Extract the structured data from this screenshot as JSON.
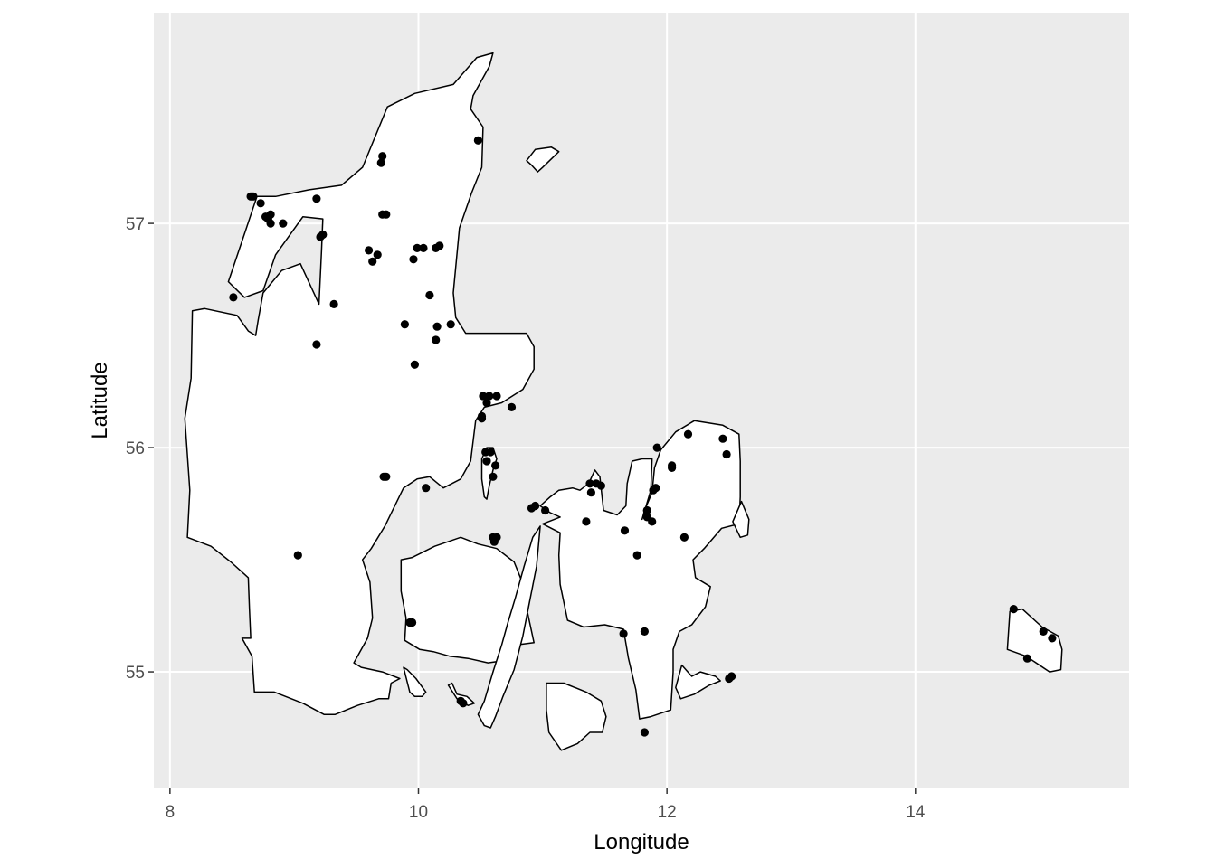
{
  "chart_data": {
    "type": "scatter",
    "title": "",
    "xlabel": "Longitude",
    "ylabel": "Latitude",
    "xlim": [
      7.87,
      15.72
    ],
    "ylim": [
      54.48,
      57.94
    ],
    "x_ticks": [
      8,
      10,
      12,
      14
    ],
    "x_tick_labels": [
      "8",
      "10",
      "12",
      "14"
    ],
    "y_ticks": [
      55,
      56,
      57
    ],
    "y_tick_labels": [
      "55",
      "56",
      "57"
    ],
    "panel_background": "#ebebeb",
    "grid": true,
    "land_fill": "#ffffff",
    "land_outline": "#000000",
    "point_color": "#000000",
    "land_polygons": [
      [
        [
          8.54,
          56.59
        ],
        [
          8.63,
          56.52
        ],
        [
          8.69,
          56.5
        ],
        [
          8.71,
          56.57
        ],
        [
          8.75,
          56.69
        ],
        [
          8.9,
          56.79
        ],
        [
          9.05,
          56.82
        ],
        [
          9.2,
          56.64
        ],
        [
          9.22,
          56.88
        ],
        [
          9.23,
          57.02
        ],
        [
          9.07,
          57.03
        ],
        [
          8.85,
          56.86
        ],
        [
          8.75,
          56.7
        ],
        [
          8.6,
          56.67
        ],
        [
          8.47,
          56.74
        ],
        [
          8.61,
          56.97
        ],
        [
          8.7,
          57.12
        ],
        [
          8.85,
          57.12
        ],
        [
          9.12,
          57.15
        ],
        [
          9.38,
          57.17
        ],
        [
          9.55,
          57.25
        ],
        [
          9.75,
          57.52
        ],
        [
          9.97,
          57.58
        ],
        [
          10.28,
          57.62
        ],
        [
          10.47,
          57.74
        ],
        [
          10.6,
          57.76
        ],
        [
          10.57,
          57.7
        ],
        [
          10.44,
          57.57
        ],
        [
          10.42,
          57.51
        ],
        [
          10.52,
          57.43
        ],
        [
          10.51,
          57.25
        ],
        [
          10.43,
          57.14
        ],
        [
          10.33,
          56.98
        ],
        [
          10.28,
          56.69
        ],
        [
          10.3,
          56.58
        ],
        [
          10.38,
          56.51
        ],
        [
          10.87,
          56.51
        ],
        [
          10.93,
          56.45
        ],
        [
          10.93,
          56.35
        ],
        [
          10.84,
          56.26
        ],
        [
          10.67,
          56.2
        ],
        [
          10.53,
          56.18
        ],
        [
          10.46,
          56.12
        ],
        [
          10.42,
          55.94
        ],
        [
          10.34,
          55.86
        ],
        [
          10.2,
          55.82
        ],
        [
          10.09,
          55.87
        ],
        [
          9.99,
          55.86
        ],
        [
          9.88,
          55.82
        ],
        [
          9.73,
          55.65
        ],
        [
          9.62,
          55.55
        ],
        [
          9.55,
          55.5
        ],
        [
          9.61,
          55.4
        ],
        [
          9.63,
          55.24
        ],
        [
          9.59,
          55.15
        ],
        [
          9.48,
          55.04
        ],
        [
          9.54,
          55.02
        ],
        [
          9.71,
          55.0
        ],
        [
          9.85,
          54.97
        ],
        [
          9.78,
          54.95
        ],
        [
          9.76,
          54.88
        ],
        [
          9.68,
          54.88
        ],
        [
          9.51,
          54.85
        ],
        [
          9.33,
          54.81
        ],
        [
          9.24,
          54.81
        ],
        [
          9.07,
          54.86
        ],
        [
          8.84,
          54.91
        ],
        [
          8.68,
          54.91
        ],
        [
          8.66,
          55.07
        ],
        [
          8.58,
          55.15
        ],
        [
          8.65,
          55.15
        ],
        [
          8.64,
          55.28
        ],
        [
          8.63,
          55.42
        ],
        [
          8.49,
          55.49
        ],
        [
          8.33,
          55.56
        ],
        [
          8.14,
          55.6
        ],
        [
          8.16,
          55.81
        ],
        [
          8.12,
          56.13
        ],
        [
          8.17,
          56.31
        ],
        [
          8.18,
          56.61
        ],
        [
          8.28,
          56.62
        ]
      ],
      [
        [
          10.93,
          55.13
        ],
        [
          10.88,
          55.26
        ],
        [
          10.81,
          55.32
        ],
        [
          10.85,
          55.38
        ],
        [
          10.77,
          55.49
        ],
        [
          10.63,
          55.55
        ],
        [
          10.48,
          55.57
        ],
        [
          10.34,
          55.6
        ],
        [
          10.13,
          55.56
        ],
        [
          9.95,
          55.51
        ],
        [
          9.86,
          55.5
        ],
        [
          9.86,
          55.36
        ],
        [
          9.9,
          55.24
        ],
        [
          9.89,
          55.14
        ],
        [
          10.01,
          55.1
        ],
        [
          10.12,
          55.09
        ],
        [
          10.25,
          55.07
        ],
        [
          10.4,
          55.06
        ],
        [
          10.56,
          55.04
        ],
        [
          10.68,
          55.05
        ],
        [
          10.79,
          55.12
        ]
      ],
      [
        [
          11.13,
          55.81
        ],
        [
          11.06,
          55.78
        ],
        [
          10.98,
          55.74
        ],
        [
          11.06,
          55.71
        ],
        [
          11.14,
          55.69
        ],
        [
          11.0,
          55.66
        ],
        [
          11.14,
          55.62
        ],
        [
          11.13,
          55.52
        ],
        [
          11.14,
          55.39
        ],
        [
          11.2,
          55.23
        ],
        [
          11.33,
          55.2
        ],
        [
          11.5,
          55.21
        ],
        [
          11.65,
          55.19
        ],
        [
          11.69,
          55.06
        ],
        [
          11.75,
          54.92
        ],
        [
          11.78,
          54.79
        ],
        [
          11.87,
          54.8
        ],
        [
          12.03,
          54.83
        ],
        [
          12.05,
          55.0
        ],
        [
          12.05,
          55.1
        ],
        [
          12.1,
          55.18
        ],
        [
          12.2,
          55.21
        ],
        [
          12.31,
          55.29
        ],
        [
          12.35,
          55.38
        ],
        [
          12.23,
          55.42
        ],
        [
          12.21,
          55.5
        ],
        [
          12.3,
          55.55
        ],
        [
          12.44,
          55.64
        ],
        [
          12.58,
          55.66
        ],
        [
          12.59,
          55.78
        ],
        [
          12.59,
          55.94
        ],
        [
          12.58,
          56.06
        ],
        [
          12.45,
          56.1
        ],
        [
          12.22,
          56.12
        ],
        [
          12.07,
          56.07
        ],
        [
          11.95,
          55.99
        ],
        [
          11.9,
          55.91
        ],
        [
          11.88,
          55.8
        ],
        [
          11.82,
          55.72
        ],
        [
          11.8,
          55.68
        ],
        [
          11.87,
          55.81
        ],
        [
          11.88,
          55.95
        ],
        [
          11.8,
          55.95
        ],
        [
          11.72,
          55.94
        ],
        [
          11.68,
          55.84
        ],
        [
          11.67,
          55.74
        ],
        [
          11.6,
          55.7
        ],
        [
          11.49,
          55.72
        ],
        [
          11.46,
          55.87
        ],
        [
          11.42,
          55.9
        ],
        [
          11.37,
          55.84
        ],
        [
          11.3,
          55.81
        ],
        [
          11.24,
          55.82
        ]
      ],
      [
        [
          10.98,
          55.65
        ],
        [
          10.95,
          55.47
        ],
        [
          10.89,
          55.3
        ],
        [
          10.84,
          55.16
        ],
        [
          10.77,
          55.01
        ],
        [
          10.68,
          54.89
        ],
        [
          10.62,
          54.8
        ],
        [
          10.58,
          54.75
        ],
        [
          10.53,
          54.76
        ],
        [
          10.48,
          54.81
        ],
        [
          10.53,
          54.87
        ],
        [
          10.6,
          55.0
        ],
        [
          10.67,
          55.12
        ],
        [
          10.72,
          55.22
        ],
        [
          10.78,
          55.33
        ],
        [
          10.85,
          55.47
        ],
        [
          10.92,
          55.6
        ]
      ],
      [
        [
          10.51,
          55.95
        ],
        [
          10.55,
          56.0
        ],
        [
          10.6,
          56.0
        ],
        [
          10.63,
          55.95
        ],
        [
          10.6,
          55.9
        ],
        [
          10.57,
          55.83
        ],
        [
          10.55,
          55.77
        ],
        [
          10.53,
          55.78
        ],
        [
          10.51,
          55.86
        ]
      ],
      [
        [
          9.91,
          55.01
        ],
        [
          9.98,
          54.97
        ],
        [
          10.06,
          54.91
        ],
        [
          10.03,
          54.89
        ],
        [
          9.97,
          54.89
        ],
        [
          9.93,
          54.91
        ],
        [
          9.88,
          55.02
        ]
      ],
      [
        [
          10.24,
          54.94
        ],
        [
          10.31,
          54.88
        ],
        [
          10.4,
          54.85
        ],
        [
          10.45,
          54.86
        ],
        [
          10.39,
          54.89
        ],
        [
          10.31,
          54.9
        ],
        [
          10.27,
          54.95
        ]
      ],
      [
        [
          11.03,
          54.95
        ],
        [
          11.17,
          54.95
        ],
        [
          11.35,
          54.91
        ],
        [
          11.47,
          54.87
        ],
        [
          11.51,
          54.8
        ],
        [
          11.48,
          54.73
        ],
        [
          11.38,
          54.73
        ],
        [
          11.28,
          54.68
        ],
        [
          11.15,
          54.65
        ],
        [
          11.05,
          54.73
        ],
        [
          11.03,
          54.83
        ]
      ],
      [
        [
          12.12,
          55.03
        ],
        [
          12.2,
          54.98
        ],
        [
          12.27,
          55.0
        ],
        [
          12.39,
          54.98
        ],
        [
          12.43,
          54.96
        ],
        [
          12.34,
          54.94
        ],
        [
          12.22,
          54.9
        ],
        [
          12.11,
          54.88
        ],
        [
          12.07,
          54.93
        ]
      ],
      [
        [
          12.53,
          55.67
        ],
        [
          12.59,
          55.6
        ],
        [
          12.65,
          55.61
        ],
        [
          12.66,
          55.68
        ],
        [
          12.6,
          55.76
        ]
      ],
      [
        [
          10.87,
          57.28
        ],
        [
          10.94,
          57.33
        ],
        [
          11.07,
          57.34
        ],
        [
          11.13,
          57.32
        ],
        [
          11.0,
          57.25
        ],
        [
          10.96,
          57.23
        ],
        [
          10.91,
          57.26
        ]
      ],
      [
        [
          14.86,
          55.28
        ],
        [
          15.02,
          55.2
        ],
        [
          15.15,
          55.16
        ],
        [
          15.18,
          55.1
        ],
        [
          15.17,
          55.01
        ],
        [
          15.08,
          55.0
        ],
        [
          14.89,
          55.07
        ],
        [
          14.74,
          55.1
        ],
        [
          14.76,
          55.27
        ]
      ]
    ],
    "points": [
      [
        10.48,
        57.37
      ],
      [
        9.71,
        57.3
      ],
      [
        9.7,
        57.27
      ],
      [
        8.65,
        57.12
      ],
      [
        8.67,
        57.12
      ],
      [
        8.73,
        57.09
      ],
      [
        9.18,
        57.11
      ],
      [
        8.81,
        57.04
      ],
      [
        8.77,
        57.03
      ],
      [
        8.79,
        57.02
      ],
      [
        8.81,
        57.0
      ],
      [
        8.91,
        57.0
      ],
      [
        9.71,
        57.04
      ],
      [
        9.74,
        57.04
      ],
      [
        9.23,
        56.95
      ],
      [
        9.21,
        56.94
      ],
      [
        9.99,
        56.89
      ],
      [
        10.04,
        56.89
      ],
      [
        10.14,
        56.89
      ],
      [
        10.17,
        56.9
      ],
      [
        9.6,
        56.88
      ],
      [
        9.67,
        56.86
      ],
      [
        9.63,
        56.83
      ],
      [
        9.96,
        56.84
      ],
      [
        8.51,
        56.67
      ],
      [
        10.09,
        56.68
      ],
      [
        9.32,
        56.64
      ],
      [
        9.89,
        56.55
      ],
      [
        10.15,
        56.54
      ],
      [
        10.26,
        56.55
      ],
      [
        10.14,
        56.48
      ],
      [
        9.18,
        56.46
      ],
      [
        9.97,
        56.37
      ],
      [
        10.52,
        56.23
      ],
      [
        10.57,
        56.23
      ],
      [
        10.63,
        56.23
      ],
      [
        10.55,
        56.2
      ],
      [
        10.75,
        56.18
      ],
      [
        10.51,
        56.14
      ],
      [
        10.51,
        56.13
      ],
      [
        10.54,
        55.98
      ],
      [
        10.58,
        55.98
      ],
      [
        10.55,
        55.94
      ],
      [
        10.62,
        55.92
      ],
      [
        10.6,
        55.87
      ],
      [
        9.72,
        55.87
      ],
      [
        9.74,
        55.87
      ],
      [
        10.06,
        55.82
      ],
      [
        9.03,
        55.52
      ],
      [
        10.91,
        55.73
      ],
      [
        10.94,
        55.74
      ],
      [
        11.02,
        55.72
      ],
      [
        11.38,
        55.84
      ],
      [
        11.43,
        55.84
      ],
      [
        11.47,
        55.83
      ],
      [
        11.39,
        55.8
      ],
      [
        11.35,
        55.67
      ],
      [
        11.66,
        55.63
      ],
      [
        11.84,
        55.72
      ],
      [
        11.84,
        55.69
      ],
      [
        11.88,
        55.67
      ],
      [
        11.76,
        55.52
      ],
      [
        11.89,
        55.81
      ],
      [
        11.91,
        55.82
      ],
      [
        11.92,
        56.0
      ],
      [
        12.17,
        56.06
      ],
      [
        12.04,
        55.91
      ],
      [
        12.04,
        55.92
      ],
      [
        12.45,
        56.04
      ],
      [
        12.48,
        55.97
      ],
      [
        12.14,
        55.6
      ],
      [
        10.6,
        55.6
      ],
      [
        10.61,
        55.58
      ],
      [
        10.63,
        55.6
      ],
      [
        9.93,
        55.22
      ],
      [
        9.95,
        55.22
      ],
      [
        11.65,
        55.17
      ],
      [
        11.82,
        55.18
      ],
      [
        10.34,
        54.87
      ],
      [
        10.36,
        54.86
      ],
      [
        11.82,
        54.73
      ],
      [
        12.5,
        54.97
      ],
      [
        12.52,
        54.98
      ],
      [
        14.79,
        55.28
      ],
      [
        15.03,
        55.18
      ],
      [
        15.1,
        55.15
      ],
      [
        14.9,
        55.06
      ]
    ]
  }
}
